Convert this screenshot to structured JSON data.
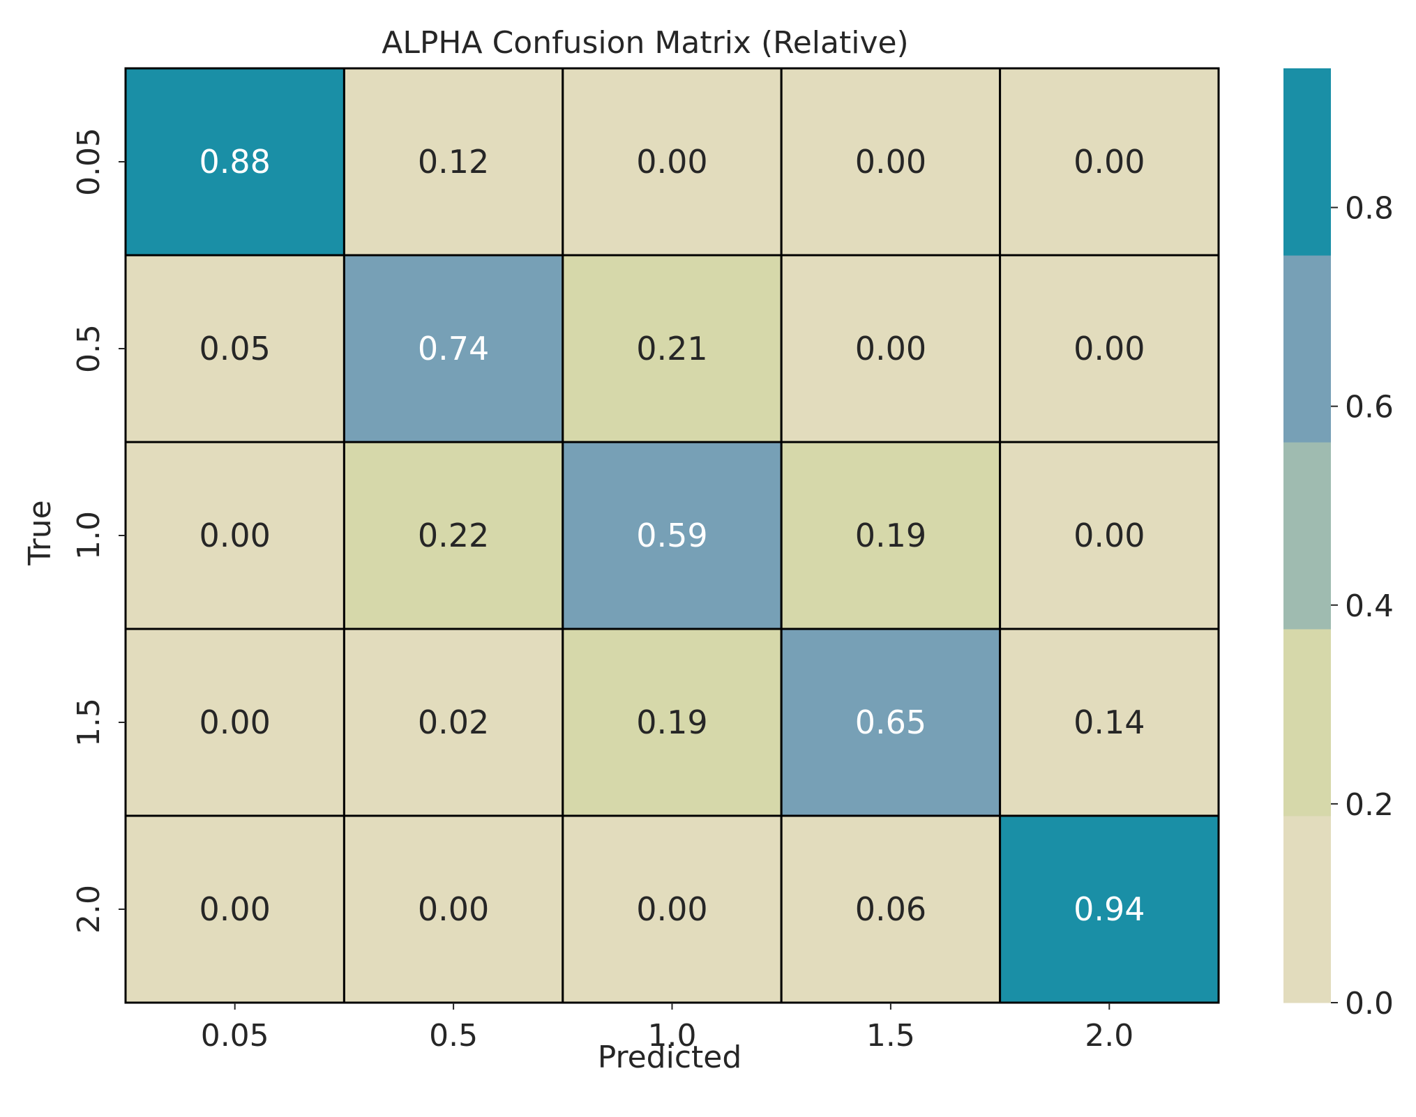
{
  "chart_data": {
    "type": "heatmap",
    "title": "ALPHA Confusion Matrix (Relative)",
    "xlabel": "Predicted",
    "ylabel": "True",
    "x_categories": [
      "0.05",
      "0.5",
      "1.0",
      "1.5",
      "2.0"
    ],
    "y_categories": [
      "0.05",
      "0.5",
      "1.0",
      "1.5",
      "2.0"
    ],
    "values": [
      [
        0.88,
        0.12,
        0.0,
        0.0,
        0.0
      ],
      [
        0.05,
        0.74,
        0.21,
        0.0,
        0.0
      ],
      [
        0.0,
        0.22,
        0.59,
        0.19,
        0.0
      ],
      [
        0.0,
        0.02,
        0.19,
        0.65,
        0.14
      ],
      [
        0.0,
        0.0,
        0.0,
        0.06,
        0.94
      ]
    ],
    "value_format": "0.00",
    "colorbar": {
      "range": [
        0.0,
        0.94
      ],
      "ticks": [
        0.0,
        0.2,
        0.4,
        0.6,
        0.8
      ],
      "tick_labels": [
        "0.0",
        "0.2",
        "0.4",
        "0.6",
        "0.8"
      ],
      "bins": [
        {
          "from": 0.0,
          "to": 0.188,
          "color": "#e2dcbd"
        },
        {
          "from": 0.188,
          "to": 0.376,
          "color": "#d6d8aa"
        },
        {
          "from": 0.376,
          "to": 0.564,
          "color": "#9fbbb0"
        },
        {
          "from": 0.564,
          "to": 0.752,
          "color": "#77a0b6"
        },
        {
          "from": 0.752,
          "to": 0.94,
          "color": "#1a8fa6"
        }
      ]
    },
    "grid": true,
    "cell_border_color": "#000000",
    "text_color_dark": "#262626",
    "text_color_light": "#ffffff"
  }
}
